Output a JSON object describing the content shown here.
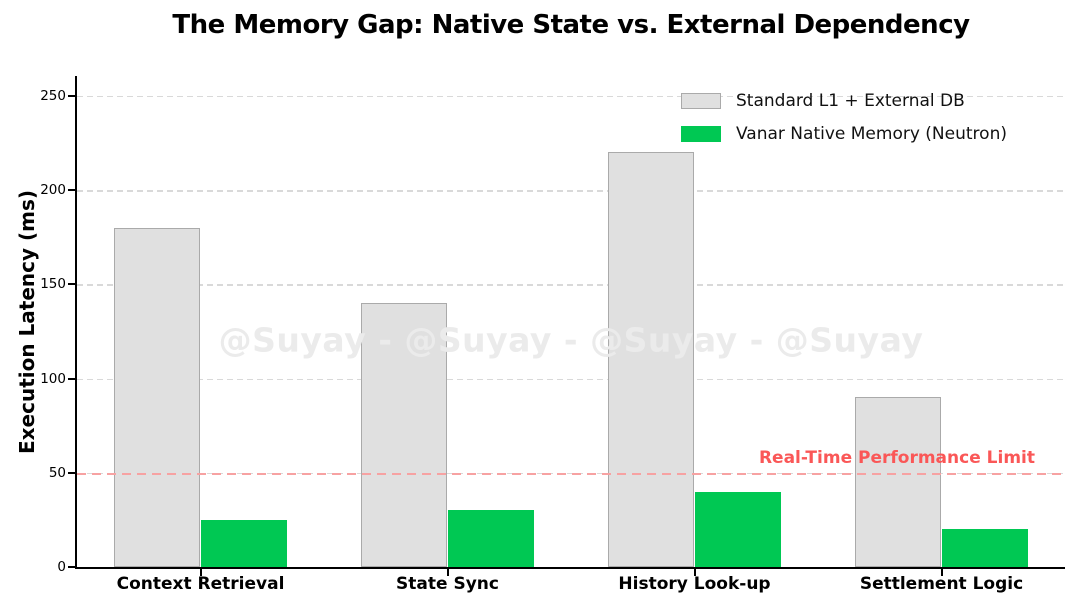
{
  "title": "The Memory Gap: Native State vs. External Dependency",
  "watermark": "@Suyay - @Suyay - @Suyay - @Suyay",
  "chart_data": {
    "type": "bar",
    "title": "The Memory Gap: Native State vs. External Dependency",
    "xlabel": "",
    "ylabel": "Execution Latency (ms)",
    "categories": [
      "Context Retrieval",
      "State Sync",
      "History Look-up",
      "Settlement Logic"
    ],
    "series": [
      {
        "name": "Standard L1 + External DB",
        "values": [
          180,
          140,
          220,
          90
        ],
        "fill": "#e0e0e0",
        "edge": "#aaaaaa"
      },
      {
        "name": "Vanar Native Memory (Neutron)",
        "values": [
          25,
          30,
          40,
          20
        ],
        "fill": "#00c853",
        "edge": "#00c853"
      }
    ],
    "yticks": [
      0,
      50,
      100,
      150,
      200,
      250
    ],
    "ylim": [
      0,
      260
    ],
    "bar_width_fraction": 0.35,
    "grid": "horizontal-dashed",
    "legend_position": "upper-right-inside",
    "threshold": {
      "value": 50,
      "label": "Real-Time Performance Limit",
      "line_color": "#f7a2a2",
      "label_color": "#fa5757"
    },
    "colors": {
      "standard_fill": "#e0e0e0",
      "standard_edge": "#aaaaaa",
      "native_fill": "#00c853",
      "grid": "#d9d9d9",
      "spine": "#000000",
      "watermark": "#ebebeb"
    }
  }
}
